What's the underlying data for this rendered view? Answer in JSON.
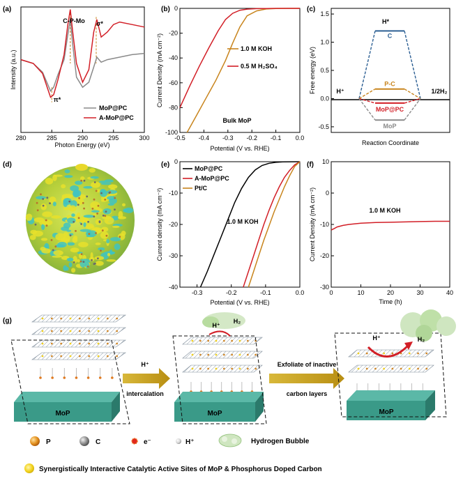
{
  "labels": {
    "a": "(a)",
    "b": "(b)",
    "c": "(c)",
    "d": "(d)",
    "e": "(e)",
    "f": "(f)",
    "g": "(g)"
  },
  "colors": {
    "red": "#d21e26",
    "gray": "#8a8a8a",
    "orange": "#c8841c",
    "blue": "#2c5f93",
    "black": "#000000",
    "mop_block": "#3a9a88",
    "arrow": "#c9a21a"
  },
  "chart_data": [
    {
      "panel": "a",
      "type": "line",
      "xlabel": "Photon Energy (eV)",
      "ylabel": "Intensity (a.u.)",
      "xlim": [
        280,
        300
      ],
      "xticks": [
        "280",
        "285",
        "290",
        "295",
        "300"
      ],
      "annotations": [
        "C-P-Mo",
        "σ*",
        "π*"
      ],
      "series": [
        {
          "name": "MoP@PC",
          "color": "#8a8a8a",
          "x": [
            280,
            282,
            283.5,
            284.8,
            285.3,
            286,
            287,
            287.6,
            288,
            288.4,
            289,
            290,
            291,
            291.8,
            292.3,
            293,
            294,
            296,
            298,
            300
          ],
          "y": [
            0.58,
            0.55,
            0.48,
            0.33,
            0.36,
            0.46,
            0.58,
            0.78,
            0.9,
            0.7,
            0.44,
            0.36,
            0.4,
            0.52,
            0.6,
            0.56,
            0.58,
            0.6,
            0.62,
            0.63
          ]
        },
        {
          "name": "A-MoP@PC",
          "color": "#d21e26",
          "x": [
            280,
            282,
            283.5,
            284.8,
            285.3,
            286,
            287,
            287.6,
            288,
            288.4,
            289,
            290,
            291,
            291.8,
            292.3,
            293,
            294,
            295,
            296,
            298,
            300
          ],
          "y": [
            0.58,
            0.55,
            0.47,
            0.28,
            0.3,
            0.42,
            0.62,
            0.86,
            0.98,
            0.8,
            0.55,
            0.4,
            0.5,
            0.8,
            0.9,
            0.76,
            0.8,
            0.86,
            0.88,
            0.86,
            0.84
          ]
        }
      ]
    },
    {
      "panel": "b",
      "type": "line",
      "xlabel": "Potential (V vs. RHE)",
      "ylabel": "Current Density (mA cm⁻²)",
      "xlim": [
        -0.5,
        0.0
      ],
      "ylim": [
        -100,
        0
      ],
      "xticks": [
        "-0.5",
        "-0.4",
        "-0.3",
        "-0.2",
        "-0.1",
        "0.0"
      ],
      "yticks": [
        "0",
        "-20",
        "-40",
        "-60",
        "-80",
        "-100"
      ],
      "annotation": "Bulk MoP",
      "series": [
        {
          "name": "1.0 M KOH",
          "color": "#c8841c",
          "x": [
            -0.47,
            -0.43,
            -0.39,
            -0.35,
            -0.31,
            -0.28,
            -0.25,
            -0.22,
            -0.18,
            -0.14,
            -0.1,
            -0.05,
            0.0
          ],
          "y": [
            -100,
            -86,
            -72,
            -58,
            -42,
            -28,
            -15,
            -6,
            -2,
            -0.5,
            -0.1,
            0,
            0
          ]
        },
        {
          "name": "0.5 M H₂SO₄",
          "color": "#d21e26",
          "x": [
            -0.5,
            -0.46,
            -0.42,
            -0.38,
            -0.34,
            -0.31,
            -0.28,
            -0.25,
            -0.22,
            -0.18,
            -0.14,
            -0.1,
            -0.05,
            0.0
          ],
          "y": [
            -80,
            -63,
            -47,
            -32,
            -18,
            -9,
            -4,
            -1.5,
            -0.6,
            -0.2,
            -0.1,
            0,
            0,
            0
          ]
        }
      ]
    },
    {
      "panel": "c",
      "type": "line",
      "xlabel": "Reaction Coordinate",
      "ylabel": "Free energy (eV)",
      "ylim": [
        -0.6,
        1.6
      ],
      "yticks": [
        "1.5",
        "1.0",
        "0.5",
        "0.0",
        "-0.5"
      ],
      "end_labels": [
        "H⁺",
        "1/2H₂"
      ],
      "levels": [
        {
          "name": "C",
          "value": 1.2,
          "color": "#2c5f93"
        },
        {
          "name": "P-C",
          "value": 0.17,
          "color": "#c8841c"
        },
        {
          "name": "MoP@PC",
          "value": -0.08,
          "color": "#d21e26"
        },
        {
          "name": "MoP",
          "value": -0.38,
          "color": "#8a8a8a"
        }
      ],
      "top_label": "H*"
    },
    {
      "panel": "e",
      "type": "line",
      "xlabel": "Potential (V vs. RHE)",
      "ylabel": "Current density (mA cm⁻²)",
      "xlim": [
        -0.35,
        0.0
      ],
      "ylim": [
        -40,
        0
      ],
      "xticks": [
        "-0.3",
        "-0.2",
        "-0.1",
        "0.0"
      ],
      "yticks": [
        "0",
        "-10",
        "-20",
        "-30",
        "-40"
      ],
      "annotation": "1.0 M KOH",
      "series": [
        {
          "name": "MoP@PC",
          "color": "#000000",
          "x": [
            -0.29,
            -0.27,
            -0.25,
            -0.23,
            -0.21,
            -0.19,
            -0.17,
            -0.15,
            -0.13,
            -0.11,
            -0.09,
            -0.07,
            -0.05,
            0.0
          ],
          "y": [
            -40,
            -35,
            -29.5,
            -24,
            -18.5,
            -13,
            -8.5,
            -5,
            -2.6,
            -1.2,
            -0.5,
            -0.2,
            -0.05,
            0
          ]
        },
        {
          "name": "A-MoP@PC",
          "color": "#d21e26",
          "x": [
            -0.165,
            -0.15,
            -0.135,
            -0.12,
            -0.105,
            -0.09,
            -0.075,
            -0.06,
            -0.045,
            -0.03,
            -0.015,
            0.0
          ],
          "y": [
            -40,
            -35,
            -30,
            -25,
            -20,
            -15.5,
            -11.5,
            -8,
            -5,
            -2.8,
            -1,
            0
          ]
        },
        {
          "name": "Pt/C",
          "color": "#c8841c",
          "x": [
            -0.15,
            -0.135,
            -0.12,
            -0.105,
            -0.09,
            -0.075,
            -0.06,
            -0.045,
            -0.03,
            -0.015,
            0.0
          ],
          "y": [
            -40,
            -35,
            -30,
            -25,
            -20.5,
            -16,
            -12,
            -8,
            -4.5,
            -1.5,
            0
          ]
        }
      ]
    },
    {
      "panel": "f",
      "type": "line",
      "xlabel": "Time (h)",
      "ylabel": "Current Density (mA cm⁻²)",
      "xlim": [
        0,
        40
      ],
      "ylim": [
        -30,
        10
      ],
      "xticks": [
        "0",
        "10",
        "20",
        "30",
        "40"
      ],
      "yticks": [
        "10",
        "0",
        "-10",
        "-20",
        "-30"
      ],
      "annotation": "1.0 M KOH",
      "series": [
        {
          "name": "A-MoP@PC",
          "color": "#d21e26",
          "x": [
            0,
            1,
            2,
            4,
            6,
            8,
            10,
            15,
            20,
            25,
            30,
            35,
            40
          ],
          "y": [
            -11.8,
            -11.3,
            -10.8,
            -10.3,
            -10.0,
            -9.8,
            -9.6,
            -9.4,
            -9.3,
            -9.2,
            -9.1,
            -9.0,
            -9.0
          ]
        }
      ]
    }
  ],
  "panel_g": {
    "block_label": "MoP",
    "step1_top": "H⁺",
    "step1_bottom": "intercalation",
    "step2_top": "Exfoliate of inactive",
    "step2_bottom": "carbon layers",
    "bubble_label_h": "H⁺",
    "bubble_label_h2": "H₂"
  },
  "legend_g": {
    "p": "P",
    "c": "C",
    "e": "e⁻",
    "h": "H⁺",
    "bubble": "Hydrogen Bubble",
    "sites": "Synergistically Interactive Catalytic Active Sites of MoP & Phosphorus Doped Carbon"
  }
}
